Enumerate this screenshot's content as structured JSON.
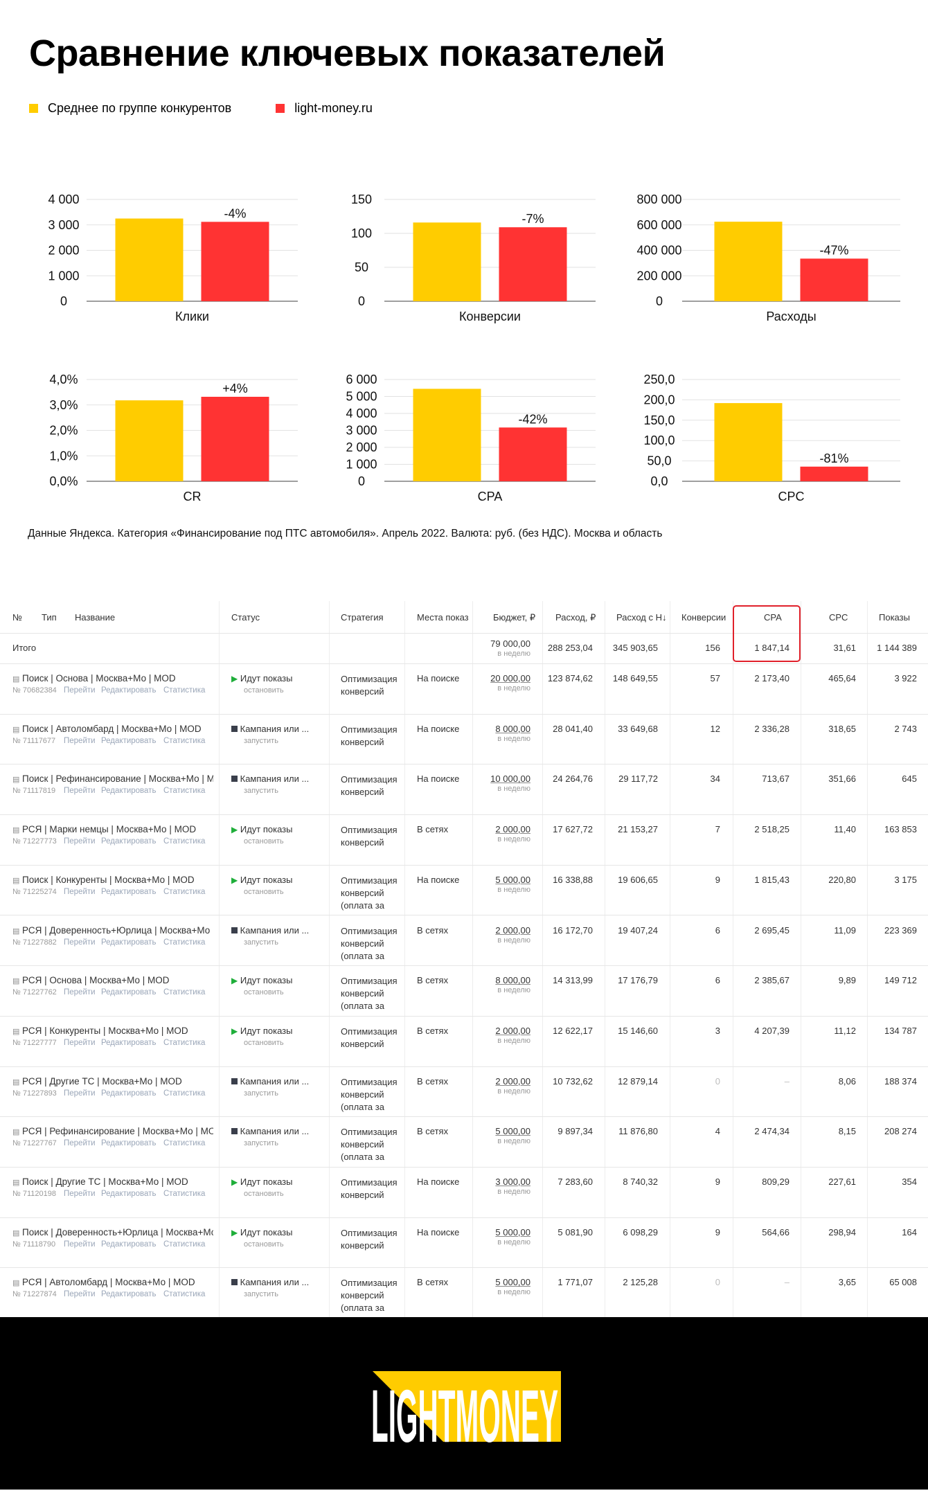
{
  "title": "Сравнение ключевых показателей",
  "colors": {
    "competitors": "#FFCC00",
    "site": "#FF3333"
  },
  "legend": {
    "competitors": "Среднее по группе конкурентов",
    "site": "light-money.ru"
  },
  "chart_data": [
    {
      "type": "bar",
      "xlabel": "Клики",
      "ylim": [
        0,
        4000
      ],
      "ticks": [
        "4 000",
        "3 000",
        "2 000",
        "1 000",
        "0"
      ],
      "tickValues": [
        4000,
        3000,
        2000,
        1000,
        0
      ],
      "series": [
        {
          "name": "Среднее по группе конкурентов",
          "values": [
            3250
          ]
        },
        {
          "name": "light-money.ru",
          "values": [
            3120
          ]
        }
      ],
      "delta": "-4%"
    },
    {
      "type": "bar",
      "xlabel": "Конверсии",
      "ylim": [
        0,
        150
      ],
      "ticks": [
        "150",
        "100",
        "50",
        "0"
      ],
      "tickValues": [
        150,
        100,
        50,
        0
      ],
      "series": [
        {
          "name": "Среднее по группе конкурентов",
          "values": [
            116
          ]
        },
        {
          "name": "light-money.ru",
          "values": [
            109
          ]
        }
      ],
      "delta": "-7%"
    },
    {
      "type": "bar",
      "xlabel": "Расходы",
      "ylim": [
        0,
        800000
      ],
      "ticks": [
        "800 000",
        "600 000",
        "400 000",
        "200 000",
        "0"
      ],
      "tickValues": [
        800000,
        600000,
        400000,
        200000,
        0
      ],
      "series": [
        {
          "name": "Среднее по группе конкурентов",
          "values": [
            625000
          ]
        },
        {
          "name": "light-money.ru",
          "values": [
            335000
          ]
        }
      ],
      "delta": "-47%"
    },
    {
      "type": "bar",
      "xlabel": "CR",
      "ylim": [
        0,
        4
      ],
      "ticks": [
        "4,0%",
        "3,0%",
        "2,0%",
        "1,0%",
        "0,0%"
      ],
      "tickValues": [
        4,
        3,
        2,
        1,
        0
      ],
      "series": [
        {
          "name": "Среднее по группе конкурентов",
          "values": [
            3.18
          ]
        },
        {
          "name": "light-money.ru",
          "values": [
            3.32
          ]
        }
      ],
      "delta": "+4%"
    },
    {
      "type": "bar",
      "xlabel": "CPA",
      "ylim": [
        0,
        6000
      ],
      "ticks": [
        "6 000",
        "5 000",
        "4 000",
        "3 000",
        "2 000",
        "1 000",
        "0"
      ],
      "tickValues": [
        6000,
        5000,
        4000,
        3000,
        2000,
        1000,
        0
      ],
      "series": [
        {
          "name": "Среднее по группе конкурентов",
          "values": [
            5450
          ]
        },
        {
          "name": "light-money.ru",
          "values": [
            3170
          ]
        }
      ],
      "delta": "-42%"
    },
    {
      "type": "bar",
      "xlabel": "CPC",
      "ylim": [
        0,
        250
      ],
      "ticks": [
        "250,0",
        "200,0",
        "150,0",
        "100,0",
        "50,0",
        "0,0"
      ],
      "tickValues": [
        250,
        200,
        150,
        100,
        50,
        0
      ],
      "series": [
        {
          "name": "Среднее по группе конкурентов",
          "values": [
            192
          ]
        },
        {
          "name": "light-money.ru",
          "values": [
            36
          ]
        }
      ],
      "delta": "-81%"
    }
  ],
  "footnote": "Данные Яндекса. Категория «Финансирование под ПТС автомобиля». Апрель 2022. Валюта: руб. (без НДС). Москва и область",
  "table": {
    "headers": {
      "no": "№",
      "type": "Тип",
      "name": "Название",
      "status": "Статус",
      "strategy": "Стратегия",
      "places": "Места показ",
      "budget": "Бюджет, ₽",
      "spend": "Расход, ₽",
      "spend_vat": "Расход с Н↓",
      "conv": "Конверсии",
      "cpa": "CPA",
      "cpc": "CPC",
      "impr": "Показы"
    },
    "total": {
      "label": "Итого",
      "budget": "79 000,00",
      "budget_sub": "в неделю",
      "spend": "288 253,04",
      "spend_vat": "345 903,65",
      "conv": "156",
      "cpa": "1 847,14",
      "cpc": "31,61",
      "impr": "1 144 389"
    },
    "actions": {
      "go": "Перейти",
      "edit": "Редактировать",
      "stats": "Статистика"
    },
    "rows": [
      {
        "name": "Поиск | Основа | Москва+Мо | MOD",
        "id": "№ 70682384",
        "status": "Идут показы",
        "status_sub": "остановить",
        "active": true,
        "strategy": "Оптимизация конверсий",
        "places": "На поиске",
        "budget": "20 000,00",
        "budget_sub": "в неделю",
        "spend": "123 874,62",
        "spend_vat": "148 649,55",
        "conv": "57",
        "cpa": "2 173,40",
        "cpc": "465,64",
        "impr": "3 922"
      },
      {
        "name": "Поиск | Автоломбард | Москва+Мо | MOD",
        "id": "№ 71117677",
        "status": "Кампания или ...",
        "status_sub": "запустить",
        "active": false,
        "strategy": "Оптимизация конверсий",
        "places": "На поиске",
        "budget": "8 000,00",
        "budget_sub": "в неделю",
        "spend": "28 041,40",
        "spend_vat": "33 649,68",
        "conv": "12",
        "cpa": "2 336,28",
        "cpc": "318,65",
        "impr": "2 743"
      },
      {
        "name": "Поиск | Рефинансирование | Москва+Мо | MOI",
        "id": "№ 71117819",
        "status": "Кампания или ...",
        "status_sub": "запустить",
        "active": false,
        "strategy": "Оптимизация конверсий",
        "places": "На поиске",
        "budget": "10 000,00",
        "budget_sub": "в неделю",
        "spend": "24 264,76",
        "spend_vat": "29 117,72",
        "conv": "34",
        "cpa": "713,67",
        "cpc": "351,66",
        "impr": "645"
      },
      {
        "name": "РСЯ | Марки немцы | Москва+Мо | MOD",
        "id": "№ 71227773",
        "status": "Идут показы",
        "status_sub": "остановить",
        "active": true,
        "strategy": "Оптимизация конверсий",
        "places": "В сетях",
        "budget": "2 000,00",
        "budget_sub": "в неделю",
        "spend": "17 627,72",
        "spend_vat": "21 153,27",
        "conv": "7",
        "cpa": "2 518,25",
        "cpc": "11,40",
        "impr": "163 853"
      },
      {
        "name": "Поиск | Конкуренты | Москва+Мо | MOD",
        "id": "№ 71225274",
        "status": "Идут показы",
        "status_sub": "остановить",
        "active": true,
        "strategy": "Оптимизация конверсий (оплата за",
        "places": "На поиске",
        "budget": "5 000,00",
        "budget_sub": "в неделю",
        "spend": "16 338,88",
        "spend_vat": "19 606,65",
        "conv": "9",
        "cpa": "1 815,43",
        "cpc": "220,80",
        "impr": "3 175"
      },
      {
        "name": "РСЯ | Доверенность+Юрлица | Москва+Мо | M",
        "id": "№ 71227882",
        "status": "Кампания или ...",
        "status_sub": "запустить",
        "active": false,
        "strategy": "Оптимизация конверсий (оплата за",
        "places": "В сетях",
        "budget": "2 000,00",
        "budget_sub": "в неделю",
        "spend": "16 172,70",
        "spend_vat": "19 407,24",
        "conv": "6",
        "cpa": "2 695,45",
        "cpc": "11,09",
        "impr": "223 369"
      },
      {
        "name": "РСЯ | Основа | Москва+Мо | MOD",
        "id": "№ 71227762",
        "status": "Идут показы",
        "status_sub": "остановить",
        "active": true,
        "strategy": "Оптимизация конверсий (оплата за",
        "places": "В сетях",
        "budget": "8 000,00",
        "budget_sub": "в неделю",
        "spend": "14 313,99",
        "spend_vat": "17 176,79",
        "conv": "6",
        "cpa": "2 385,67",
        "cpc": "9,89",
        "impr": "149 712"
      },
      {
        "name": "РСЯ | Конкуренты | Москва+Мо | MOD",
        "id": "№ 71227777",
        "status": "Идут показы",
        "status_sub": "остановить",
        "active": true,
        "strategy": "Оптимизация конверсий",
        "places": "В сетях",
        "budget": "2 000,00",
        "budget_sub": "в неделю",
        "spend": "12 622,17",
        "spend_vat": "15 146,60",
        "conv": "3",
        "cpa": "4 207,39",
        "cpc": "11,12",
        "impr": "134 787"
      },
      {
        "name": "РСЯ | Другие ТС | Москва+Мо | MOD",
        "id": "№ 71227893",
        "status": "Кампания или ...",
        "status_sub": "запустить",
        "active": false,
        "strategy": "Оптимизация конверсий (оплата за",
        "places": "В сетях",
        "budget": "2 000,00",
        "budget_sub": "в неделю",
        "spend": "10 732,62",
        "spend_vat": "12 879,14",
        "conv": "0",
        "cpa": "–",
        "cpc": "8,06",
        "impr": "188 374"
      },
      {
        "name": "РСЯ | Рефинансирование | Москва+Мо | MOD",
        "id": "№ 71227767",
        "status": "Кампания или ...",
        "status_sub": "запустить",
        "active": false,
        "strategy": "Оптимизация конверсий (оплата за",
        "places": "В сетях",
        "budget": "5 000,00",
        "budget_sub": "в неделю",
        "spend": "9 897,34",
        "spend_vat": "11 876,80",
        "conv": "4",
        "cpa": "2 474,34",
        "cpc": "8,15",
        "impr": "208 274"
      },
      {
        "name": "Поиск | Другие ТС | Москва+Мо | MOD",
        "id": "№ 71120198",
        "status": "Идут показы",
        "status_sub": "остановить",
        "active": true,
        "strategy": "Оптимизация конверсий",
        "places": "На поиске",
        "budget": "3 000,00",
        "budget_sub": "в неделю",
        "spend": "7 283,60",
        "spend_vat": "8 740,32",
        "conv": "9",
        "cpa": "809,29",
        "cpc": "227,61",
        "impr": "354"
      },
      {
        "name": "Поиск | Доверенность+Юрлица | Москва+Мо |",
        "id": "№ 71118790",
        "status": "Идут показы",
        "status_sub": "остановить",
        "active": true,
        "strategy": "Оптимизация конверсий",
        "places": "На поиске",
        "budget": "5 000,00",
        "budget_sub": "в неделю",
        "spend": "5 081,90",
        "spend_vat": "6 098,29",
        "conv": "9",
        "cpa": "564,66",
        "cpc": "298,94",
        "impr": "164"
      },
      {
        "name": "РСЯ | Автоломбард | Москва+Мо | MOD",
        "id": "№ 71227874",
        "status": "Кампания или ...",
        "status_sub": "запустить",
        "active": false,
        "strategy": "Оптимизация конверсий (оплата за",
        "places": "В сетях",
        "budget": "5 000,00",
        "budget_sub": "в неделю",
        "spend": "1 771,07",
        "spend_vat": "2 125,28",
        "conv": "0",
        "cpa": "–",
        "cpc": "3,65",
        "impr": "65 008"
      }
    ]
  },
  "logo": {
    "text": "LIGHTMONEY",
    "bg": "#000000",
    "text_color": "#FFFFFF",
    "accent": "#FFCC00"
  }
}
